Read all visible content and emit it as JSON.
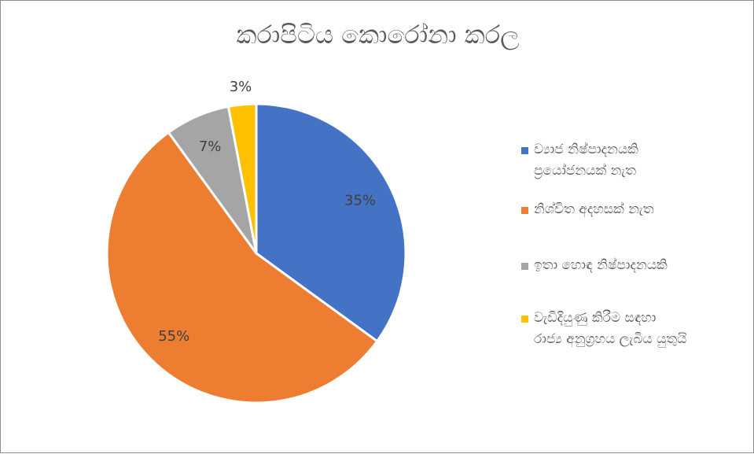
{
  "chart_data": {
    "type": "pie",
    "title": "කරාපිටිය කොරෝනා කරල",
    "categories": [
      "ව්‍යාජ නිෂ්පාදනයකි ප්‍රයෝජනයක් නැත",
      "නිශ්චිත අදහසක් නැත",
      "ඉතා හොඳ නිෂ්පාදනයකි",
      "වැඩිදියුණු කිරීම සඳහා රාජ්‍ය අනුග්‍රහය ලැබිය යුතුයි"
    ],
    "legend_lines": [
      [
        "ව්‍යාජ නිෂ්පාදනයකි",
        "ප්‍රයෝජනයක් නැත"
      ],
      [
        "නිශ්චිත අදහසක් නැත"
      ],
      [
        "ඉතා හොඳ නිෂ්පාදනයකි"
      ],
      [
        "වැඩිදියුණු කිරීම සඳහා",
        "රාජ්‍ය අනුග්‍රහය ලැබිය යුතුයි"
      ]
    ],
    "values": [
      35,
      55,
      7,
      3
    ],
    "data_labels": [
      "35%",
      "55%",
      "7%",
      "3%"
    ],
    "colors": [
      "#4472C4",
      "#ED7D31",
      "#A5A5A5",
      "#FFC000"
    ],
    "legend_position": "right"
  }
}
